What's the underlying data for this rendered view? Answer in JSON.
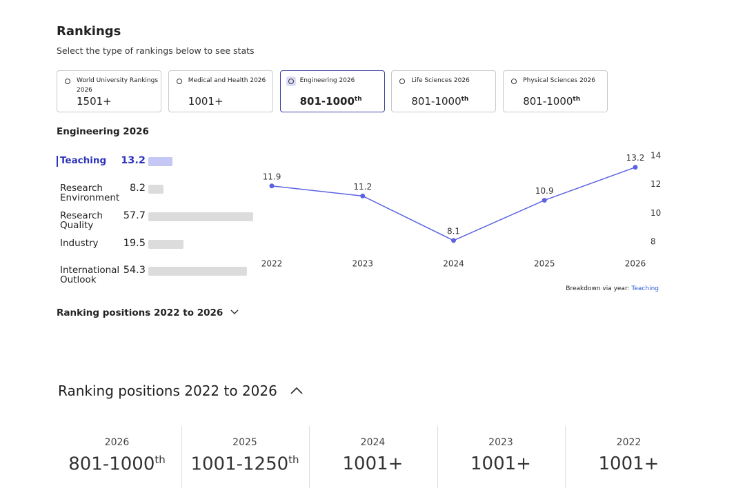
{
  "header": {
    "title": "Rankings",
    "subtitle": "Select the type of rankings below to see stats"
  },
  "tabs": [
    {
      "label": "World University Rankings 2026",
      "rank": "1501+"
    },
    {
      "label": "Medical and Health 2026",
      "rank": "1001+"
    },
    {
      "label": "Engineering 2026",
      "rank": "801-1000",
      "suffix": "th",
      "selected": true
    },
    {
      "label": "Life Sciences 2026",
      "rank": "801-1000",
      "suffix": "th"
    },
    {
      "label": "Physical Sciences 2026",
      "rank": "801-1000",
      "suffix": "th"
    }
  ],
  "section_title": "Engineering 2026",
  "pillars": {
    "names": [
      "Teaching",
      "Research Environment",
      "Research Quality",
      "Industry",
      "International Outlook"
    ],
    "scores": [
      13.2,
      8.2,
      57.7,
      19.5,
      54.3
    ],
    "selected": 0
  },
  "chart_data": {
    "type": "line",
    "x": [
      "2022",
      "2023",
      "2024",
      "2025",
      "2026"
    ],
    "series": [
      {
        "name": "Teaching",
        "color": "#5c63e0",
        "values": [
          11.9,
          11.2,
          8.1,
          10.9,
          13.2
        ]
      }
    ],
    "ylim": [
      8,
      14
    ],
    "yticks": [
      8,
      10,
      12,
      14
    ],
    "note": "Breakdown via year:"
  },
  "positions_toggle": "Ranking positions 2022 to 2026",
  "positions": {
    "title": "Ranking positions 2022 to 2026",
    "columns": [
      {
        "year": "2026",
        "rank": "801-1000",
        "suffix": "th"
      },
      {
        "year": "2025",
        "rank": "1001-1250",
        "suffix": "th"
      },
      {
        "year": "2024",
        "rank": "1001+"
      },
      {
        "year": "2023",
        "rank": "1001+"
      },
      {
        "year": "2022",
        "rank": "1001+"
      }
    ]
  }
}
